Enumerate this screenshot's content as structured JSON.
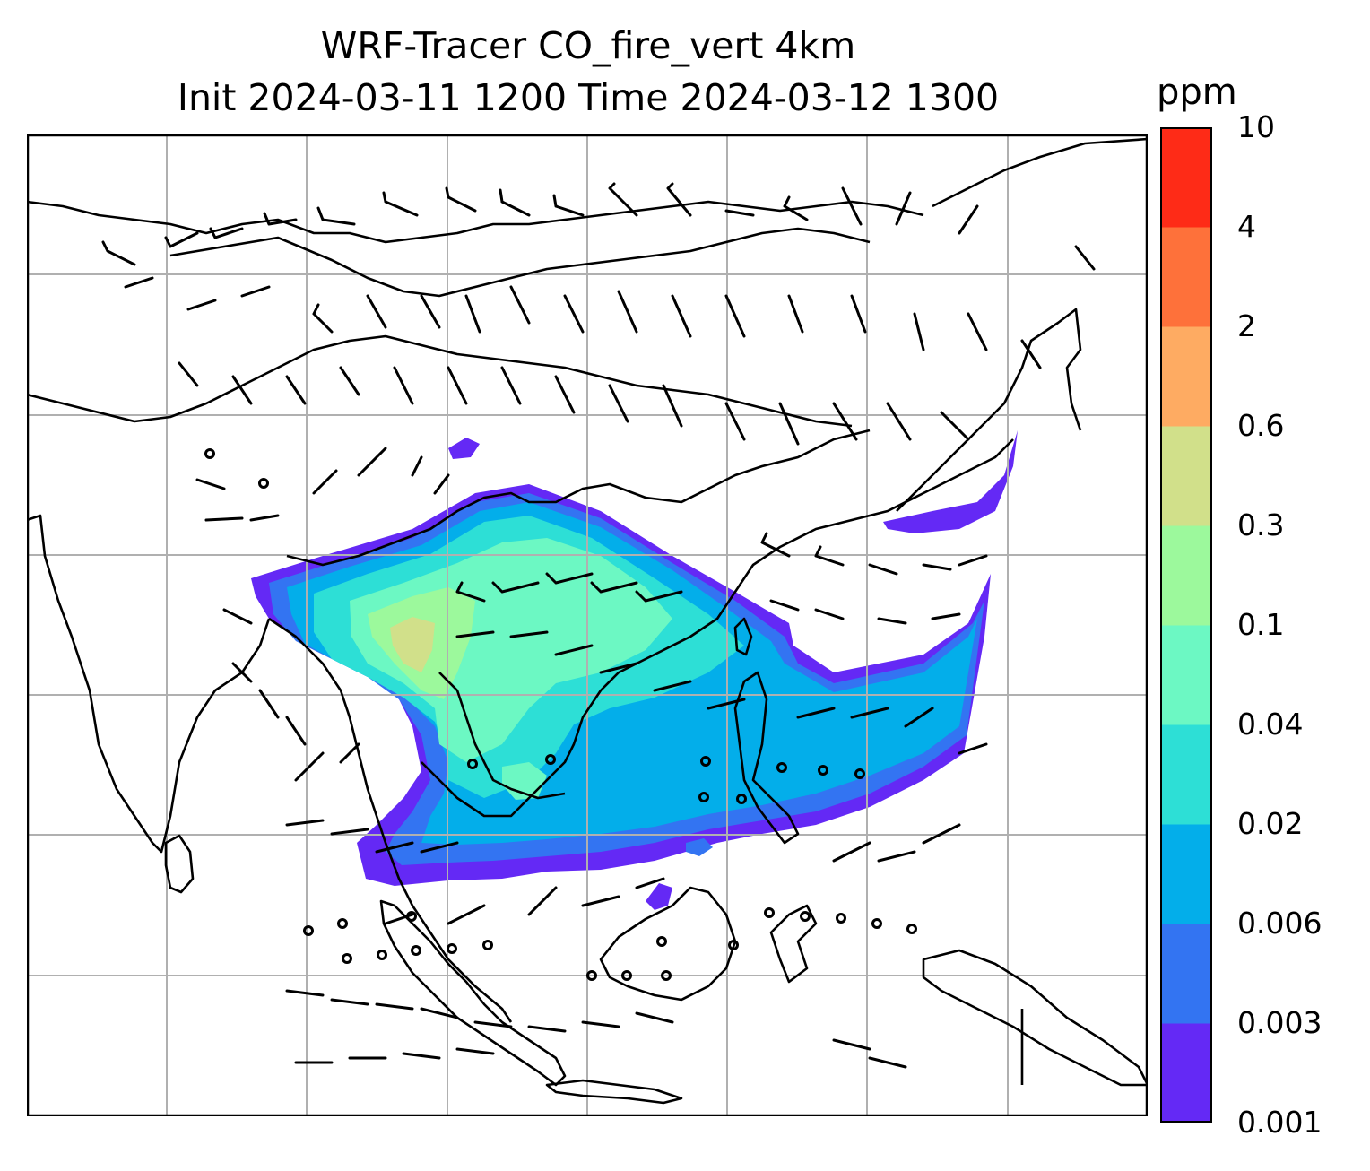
{
  "title": {
    "line1": "WRF-Tracer CO_fire_vert 4km",
    "line2": "Init 2024-03-11 1200 Time 2024-03-12 1300"
  },
  "colorbar": {
    "title": "ppm",
    "levels": [
      {
        "label": "0.001",
        "color": "#6429f5"
      },
      {
        "label": "0.003",
        "color": "#3374f2"
      },
      {
        "label": "0.006",
        "color": "#03aeea"
      },
      {
        "label": "0.02",
        "color": "#2ddfd6"
      },
      {
        "label": "0.04",
        "color": "#6cf8c3"
      },
      {
        "label": "0.1",
        "color": "#9cf99c"
      },
      {
        "label": "0.3",
        "color": "#d1e08a"
      },
      {
        "label": "0.6",
        "color": "#feab62"
      },
      {
        "label": "2",
        "color": "#fe713a"
      },
      {
        "label": "4",
        "color": "#fe2b17"
      },
      {
        "label": "10",
        "color": null
      }
    ]
  },
  "map": {
    "gridlines": true,
    "coastlines_color": "#000000",
    "wind_barbs_color": "#000000"
  }
}
